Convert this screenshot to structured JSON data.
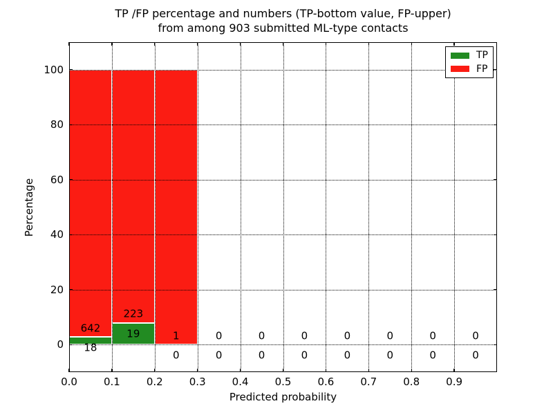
{
  "chart_data": {
    "type": "bar",
    "stacked": true,
    "title_lines": [
      "TP /FP percentage and numbers (TP-bottom value, FP-upper)",
      "from among 903 submitted ML-type contacts"
    ],
    "xlabel": "Predicted probability",
    "ylabel": "Percentage",
    "xlim": [
      0.0,
      1.0
    ],
    "ylim": [
      -10,
      110
    ],
    "x_tick_labels": [
      "0.0",
      "0.1",
      "0.2",
      "0.3",
      "0.4",
      "0.5",
      "0.6",
      "0.7",
      "0.8",
      "0.9"
    ],
    "x_tick_values": [
      0,
      0.1,
      0.2,
      0.3,
      0.4,
      0.5,
      0.6,
      0.7,
      0.8,
      0.9
    ],
    "y_tick_labels": [
      "0",
      "20",
      "40",
      "60",
      "80",
      "100"
    ],
    "y_tick_values": [
      0,
      20,
      40,
      60,
      80,
      100
    ],
    "grid": "dotted",
    "total_submitted": 903,
    "legend_position": "upper right",
    "legend_items": [
      {
        "label": "TP",
        "color": "#228B22"
      },
      {
        "label": "FP",
        "color": "#FB1C13"
      }
    ],
    "bins": [
      {
        "x_start": 0.0,
        "x_end": 0.1,
        "tp_count": 18,
        "fp_count": 642,
        "tp_pct": 2.73,
        "fp_pct": 97.27
      },
      {
        "x_start": 0.1,
        "x_end": 0.2,
        "tp_count": 19,
        "fp_count": 223,
        "tp_pct": 7.85,
        "fp_pct": 92.15
      },
      {
        "x_start": 0.2,
        "x_end": 0.3,
        "tp_count": 0,
        "fp_count": 1,
        "tp_pct": 0,
        "fp_pct": 100
      },
      {
        "x_start": 0.3,
        "x_end": 0.4,
        "tp_count": 0,
        "fp_count": 0,
        "tp_pct": 0,
        "fp_pct": 0
      },
      {
        "x_start": 0.4,
        "x_end": 0.5,
        "tp_count": 0,
        "fp_count": 0,
        "tp_pct": 0,
        "fp_pct": 0
      },
      {
        "x_start": 0.5,
        "x_end": 0.6,
        "tp_count": 0,
        "fp_count": 0,
        "tp_pct": 0,
        "fp_pct": 0
      },
      {
        "x_start": 0.6,
        "x_end": 0.7,
        "tp_count": 0,
        "fp_count": 0,
        "tp_pct": 0,
        "fp_pct": 0
      },
      {
        "x_start": 0.7,
        "x_end": 0.8,
        "tp_count": 0,
        "fp_count": 0,
        "tp_pct": 0,
        "fp_pct": 0
      },
      {
        "x_start": 0.8,
        "x_end": 0.9,
        "tp_count": 0,
        "fp_count": 0,
        "tp_pct": 0,
        "fp_pct": 0
      },
      {
        "x_start": 0.9,
        "x_end": 1.0,
        "tp_count": 0,
        "fp_count": 0,
        "tp_pct": 0,
        "fp_pct": 0
      }
    ]
  }
}
